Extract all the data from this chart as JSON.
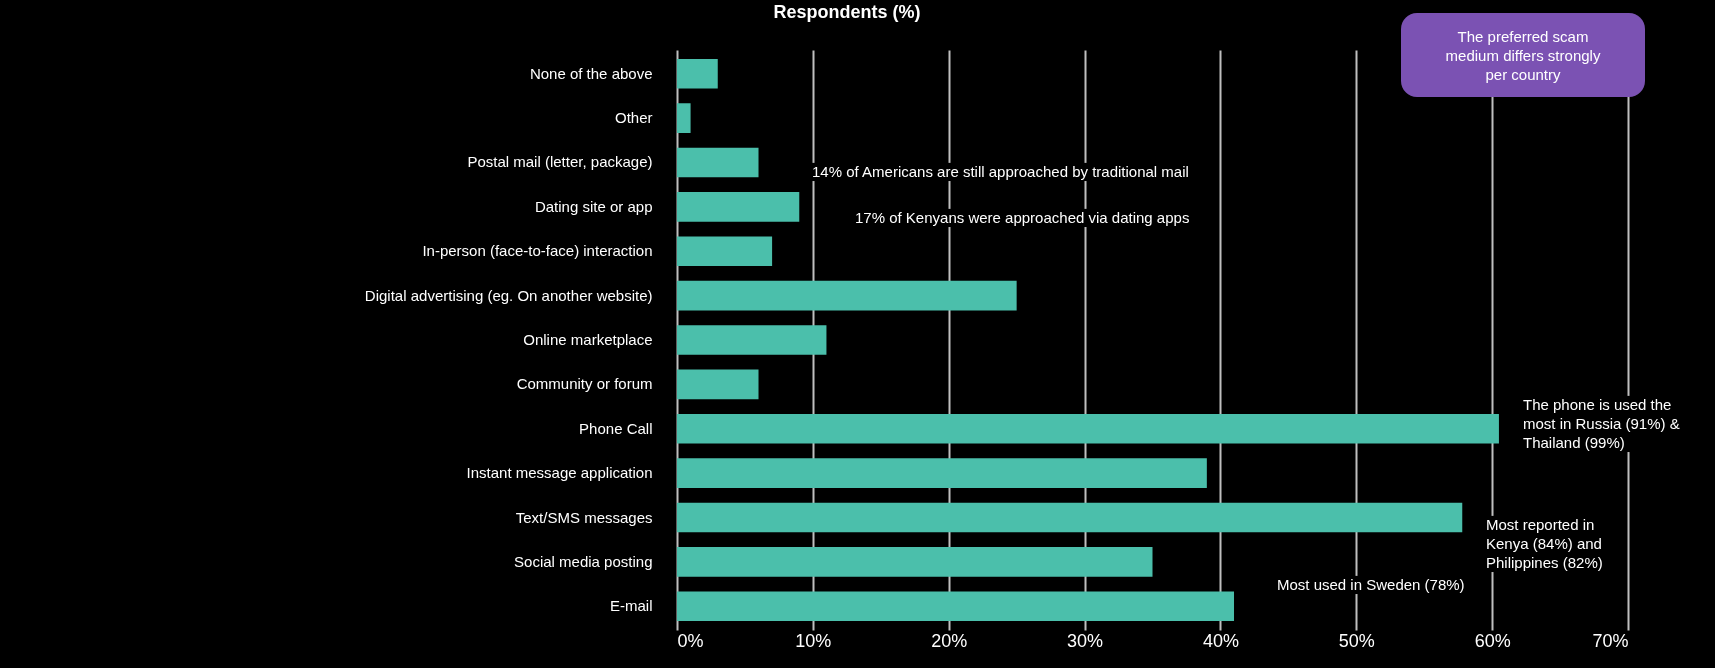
{
  "chart_data": {
    "type": "bar",
    "orientation": "horizontal",
    "title": "Respondents (%)",
    "categories": [
      "None of the above",
      "Other",
      "Postal mail (letter, package)",
      "Dating site or app",
      "In-person (face-to-face) interaction",
      "Digital advertising (eg. On another website)",
      "Online marketplace",
      "Community or forum",
      "Phone Call",
      "Instant message application",
      "Text/SMS messages",
      "Social media posting",
      "E-mail"
    ],
    "values": [
      3.0,
      1.0,
      6.0,
      9.0,
      7.0,
      25.0,
      11.0,
      6.0,
      60.5,
      39.0,
      57.8,
      35.0,
      41.0
    ],
    "color": "#4bbfab",
    "xlim": [
      0,
      70
    ],
    "xticks": [
      {
        "value": 0,
        "label": "0%"
      },
      {
        "value": 10,
        "label": "10%"
      },
      {
        "value": 20,
        "label": "20%"
      },
      {
        "value": 30,
        "label": "30%"
      },
      {
        "value": 40,
        "label": "40%"
      },
      {
        "value": 50,
        "label": "50%"
      },
      {
        "value": 60,
        "label": "60%"
      },
      {
        "value": 70,
        "label": "70%"
      }
    ],
    "grid": "x",
    "annotations": [
      "The preferred scam medium differs strongly per country",
      "14% of  Americans are still approached by traditional mail",
      "17% of Kenyans were approached via dating apps",
      "The phone is used the most in Russia (91%) & Thailand (99%)",
      "Most reported in Kenya (84%) and Philippines (82%)",
      "Most used in Sweden (78%)"
    ]
  }
}
